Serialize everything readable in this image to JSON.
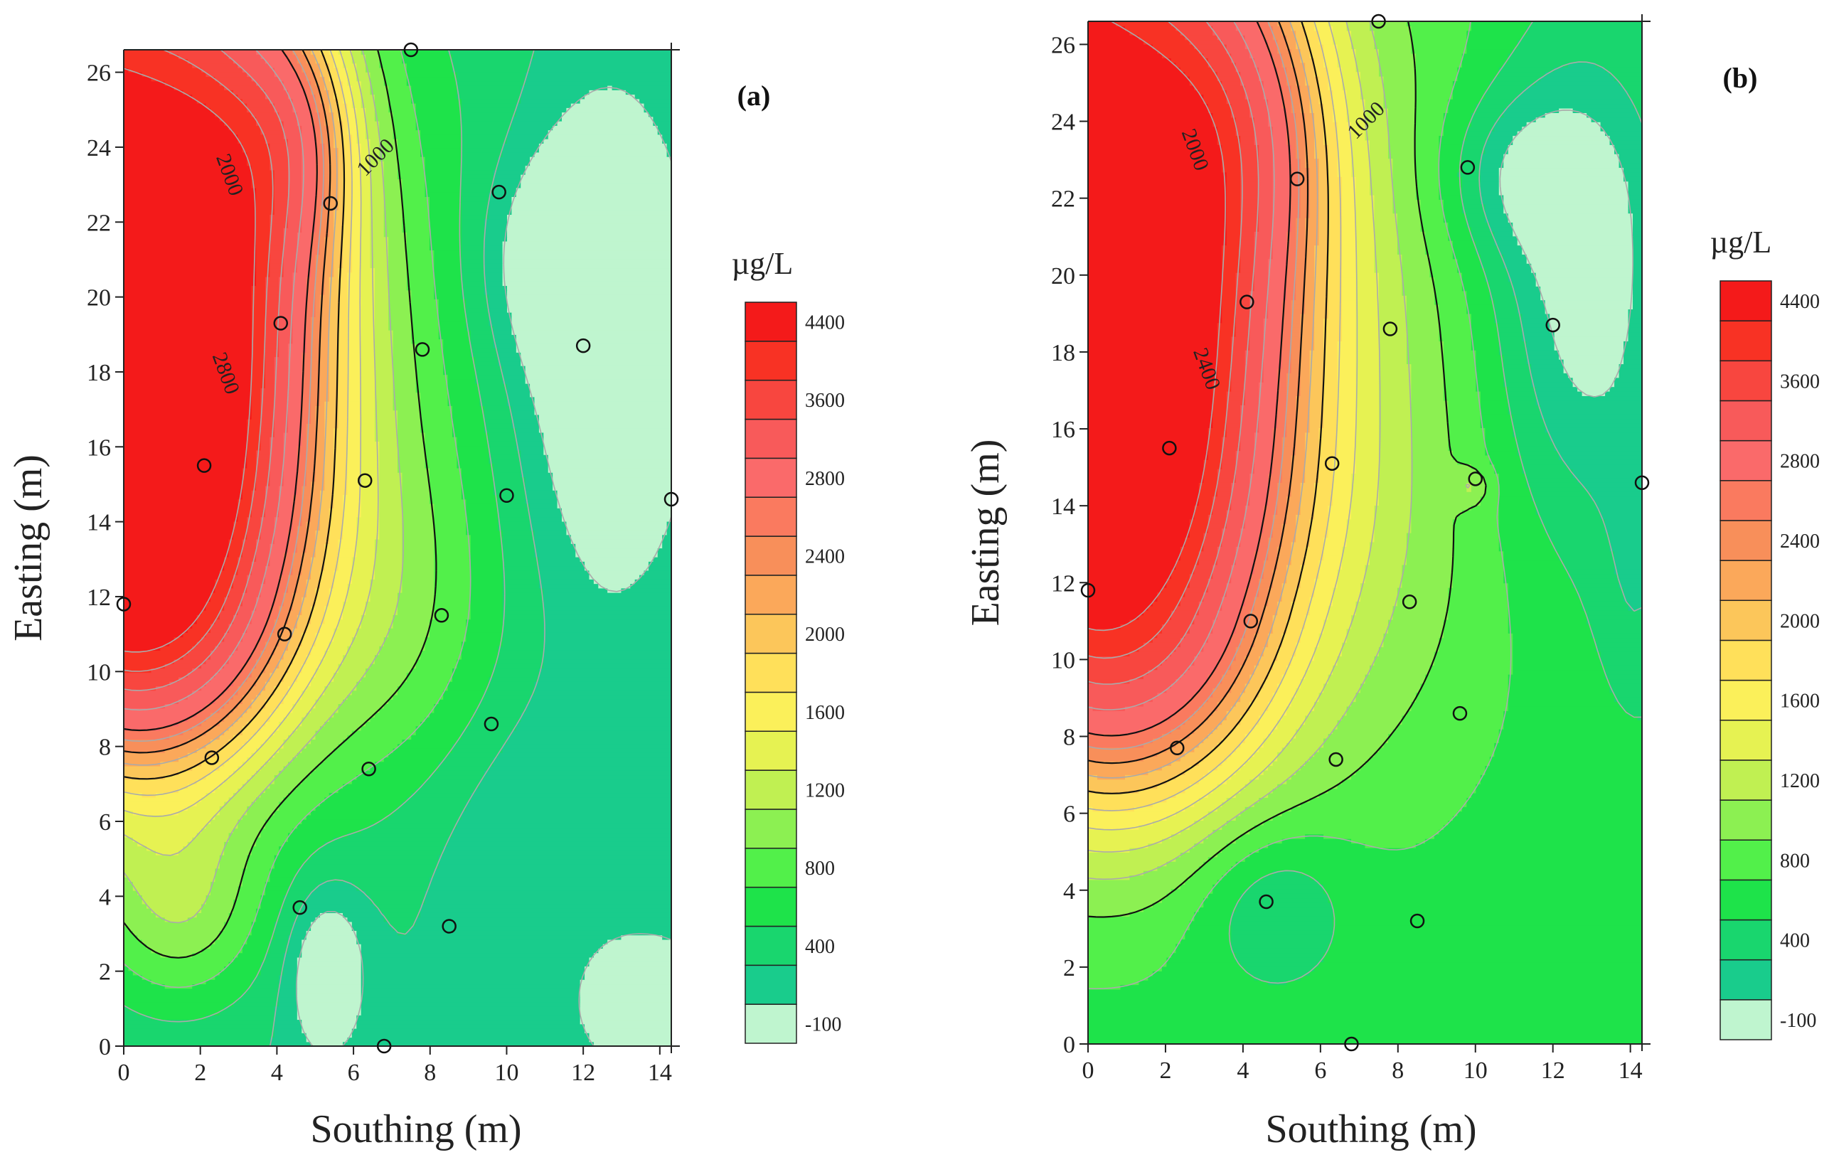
{
  "chart_data": [
    {
      "type": "contour",
      "panel_label": "(a)",
      "xlabel": "Southing (m)",
      "ylabel": "Easting (m)",
      "xlim": [
        0,
        14.3
      ],
      "ylim": [
        0,
        26.6
      ],
      "xticks": [
        0,
        2,
        4,
        6,
        8,
        10,
        12,
        14
      ],
      "yticks": [
        0,
        2,
        4,
        6,
        8,
        10,
        12,
        14,
        16,
        18,
        20,
        22,
        24,
        26
      ],
      "unit": "µg/L",
      "colorbar_levels": [
        -100,
        200,
        400,
        600,
        800,
        1000,
        1200,
        1400,
        1600,
        1800,
        2000,
        2200,
        2400,
        2600,
        2800,
        3200,
        3600,
        4000,
        4400,
        4800
      ],
      "colorbar_tick_labels": [
        "-100",
        "400",
        "800",
        "1200",
        "1600",
        "2000",
        "2400",
        "2800",
        "3600",
        "4400"
      ],
      "contour_labels": [
        {
          "text": "2000",
          "x": 2.6,
          "y": 23.2
        },
        {
          "text": "1000",
          "x": 6.7,
          "y": 23.6
        },
        {
          "text": "2800",
          "x": 2.5,
          "y": 17.9
        }
      ],
      "sample_points": [
        {
          "x": 7.5,
          "y": 26.6
        },
        {
          "x": 9.8,
          "y": 22.8
        },
        {
          "x": 5.4,
          "y": 22.5
        },
        {
          "x": 4.1,
          "y": 19.3
        },
        {
          "x": 7.8,
          "y": 18.6
        },
        {
          "x": 12.0,
          "y": 18.7
        },
        {
          "x": 2.1,
          "y": 15.5
        },
        {
          "x": 6.3,
          "y": 15.1
        },
        {
          "x": 10.0,
          "y": 14.7
        },
        {
          "x": 14.3,
          "y": 14.6
        },
        {
          "x": 0.0,
          "y": 11.8
        },
        {
          "x": 8.3,
          "y": 11.5
        },
        {
          "x": 4.2,
          "y": 11.0
        },
        {
          "x": 9.6,
          "y": 8.6
        },
        {
          "x": 2.3,
          "y": 7.7
        },
        {
          "x": 6.4,
          "y": 7.4
        },
        {
          "x": 4.6,
          "y": 3.7
        },
        {
          "x": 8.5,
          "y": 3.2
        },
        {
          "x": 6.8,
          "y": 0.0
        }
      ]
    },
    {
      "type": "contour",
      "panel_label": "(b)",
      "xlabel": "Southing (m)",
      "ylabel": "Easting (m)",
      "xlim": [
        0,
        14.3
      ],
      "ylim": [
        0,
        26.6
      ],
      "xticks": [
        0,
        2,
        4,
        6,
        8,
        10,
        12,
        14
      ],
      "yticks": [
        0,
        2,
        4,
        6,
        8,
        10,
        12,
        14,
        16,
        18,
        20,
        22,
        24,
        26
      ],
      "unit": "µg/L",
      "colorbar_levels": [
        -100,
        200,
        400,
        600,
        800,
        1000,
        1200,
        1400,
        1600,
        1800,
        2000,
        2200,
        2400,
        2600,
        2800,
        3200,
        3600,
        4000,
        4400,
        4800
      ],
      "colorbar_tick_labels": [
        "-100",
        "400",
        "800",
        "1200",
        "1600",
        "2000",
        "2400",
        "2800",
        "3600",
        "4400"
      ],
      "contour_labels": [
        {
          "text": "2000",
          "x": 2.6,
          "y": 23.2
        },
        {
          "text": "1000",
          "x": 7.3,
          "y": 23.9
        },
        {
          "text": "2400",
          "x": 2.9,
          "y": 17.5
        }
      ],
      "sample_points": [
        {
          "x": 7.5,
          "y": 26.6
        },
        {
          "x": 9.8,
          "y": 22.8
        },
        {
          "x": 5.4,
          "y": 22.5
        },
        {
          "x": 4.1,
          "y": 19.3
        },
        {
          "x": 7.8,
          "y": 18.6
        },
        {
          "x": 12.0,
          "y": 18.7
        },
        {
          "x": 2.1,
          "y": 15.5
        },
        {
          "x": 6.3,
          "y": 15.1
        },
        {
          "x": 10.0,
          "y": 14.7
        },
        {
          "x": 14.3,
          "y": 14.6
        },
        {
          "x": 0.0,
          "y": 11.8
        },
        {
          "x": 8.3,
          "y": 11.5
        },
        {
          "x": 4.2,
          "y": 11.0
        },
        {
          "x": 9.6,
          "y": 8.6
        },
        {
          "x": 2.3,
          "y": 7.7
        },
        {
          "x": 6.4,
          "y": 7.4
        },
        {
          "x": 4.6,
          "y": 3.7
        },
        {
          "x": 8.5,
          "y": 3.2
        },
        {
          "x": 6.8,
          "y": 0.0
        }
      ]
    }
  ],
  "colors": {
    "level_colors": [
      "#bff5cf",
      "#19cc8c",
      "#19d66e",
      "#1ee34a",
      "#52f04a",
      "#8cf052",
      "#c0f052",
      "#e6f252",
      "#fbf05a",
      "#ffe05a",
      "#fcc65a",
      "#fba85a",
      "#f88f5a",
      "#fa7a5f",
      "#fa6a6a",
      "#f85a5a",
      "#f8463f",
      "#f83224",
      "#f41a1a"
    ],
    "contour_line": "#111111",
    "grey_contour": "#aaaaaa"
  }
}
